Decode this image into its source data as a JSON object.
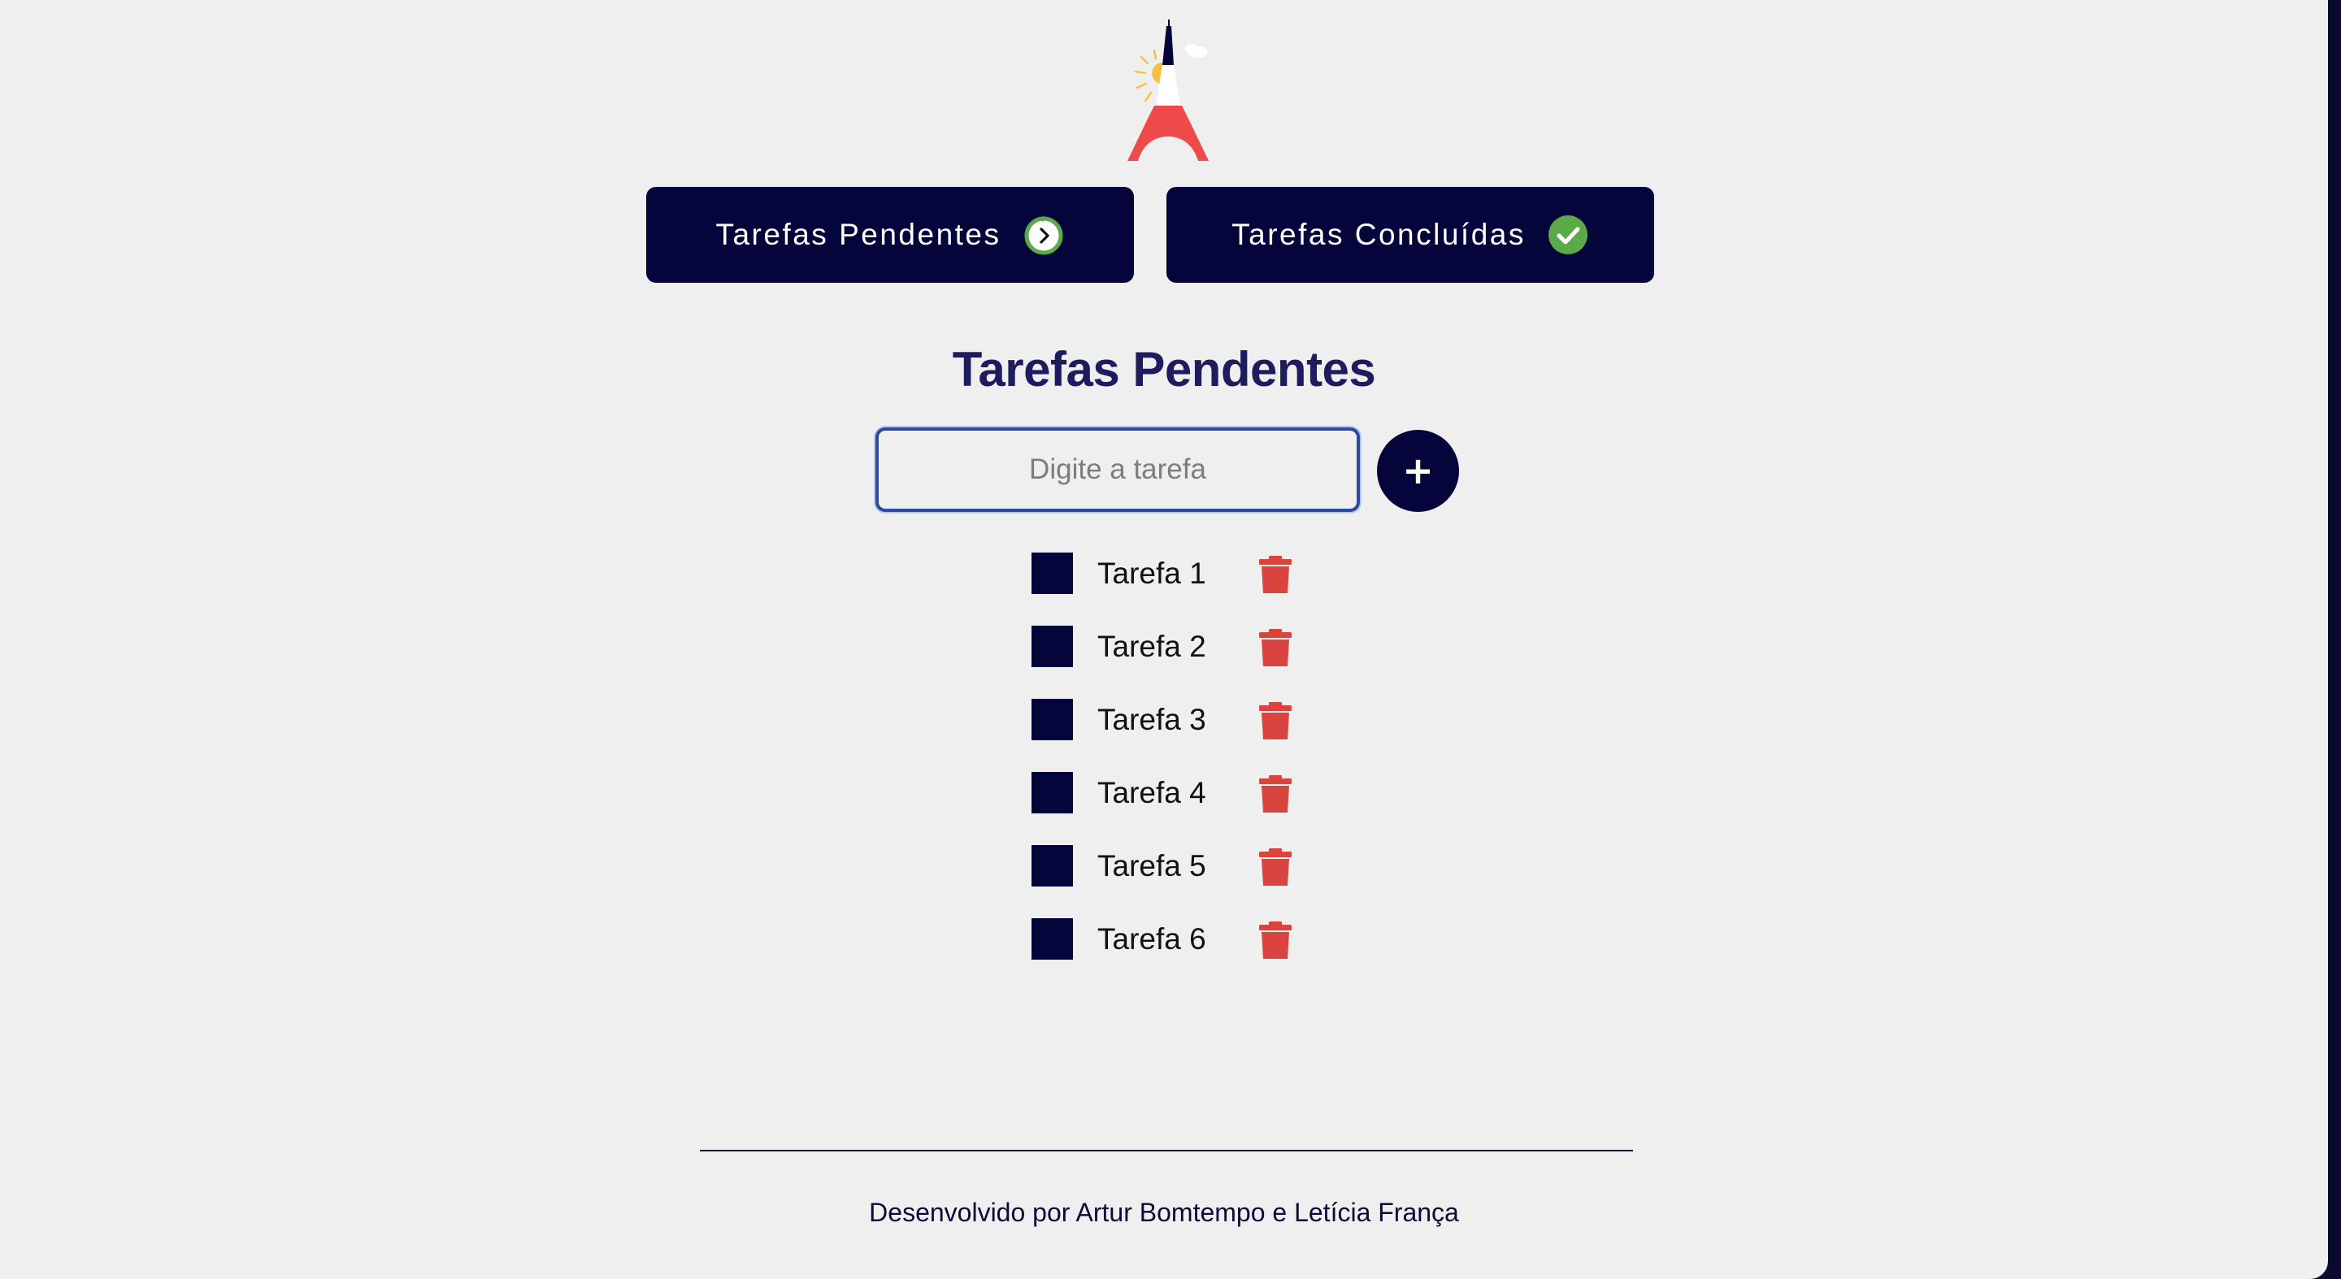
{
  "header": {
    "logo": "eiffel-tower-logo"
  },
  "nav": {
    "pending_label": "Tarefas Pendentes",
    "pending_icon": "clock-icon",
    "done_label": "Tarefas Concluídas",
    "done_icon": "check-circle-icon"
  },
  "main": {
    "title": "Tarefas Pendentes",
    "input_placeholder": "Digite a tarefa",
    "input_value": "",
    "add_label": "+"
  },
  "tasks": [
    {
      "label": "Tarefa 1",
      "done": false
    },
    {
      "label": "Tarefa 2",
      "done": false
    },
    {
      "label": "Tarefa 3",
      "done": false
    },
    {
      "label": "Tarefa 4",
      "done": false
    },
    {
      "label": "Tarefa 5",
      "done": false
    },
    {
      "label": "Tarefa 6",
      "done": false
    }
  ],
  "footer": {
    "credits": "Desenvolvido por Artur Bomtempo e Letícia França"
  },
  "colors": {
    "primary": "#04053a",
    "title": "#1e1b5e",
    "background": "#f0eff0",
    "delete": "#d9443f",
    "success": "#5aaa4a",
    "logo_red": "#ef4a4a",
    "logo_sun": "#f4c23c"
  }
}
